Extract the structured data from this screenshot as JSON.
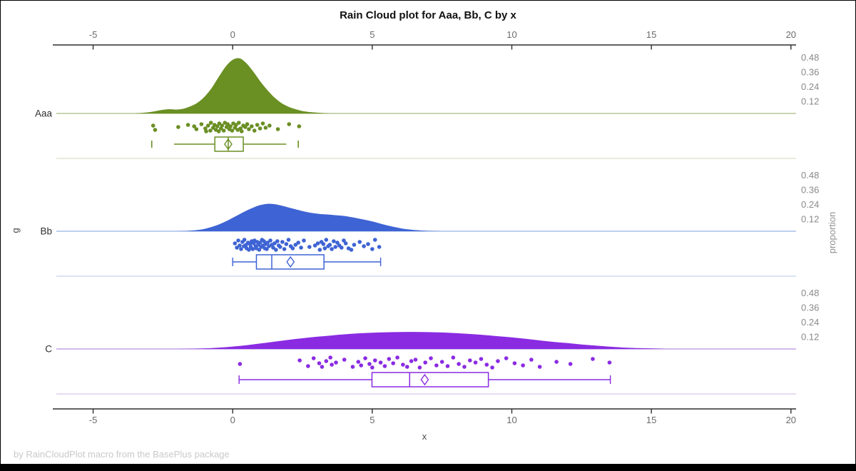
{
  "title": "Rain Cloud plot for Aaa, Bb, C by x",
  "footnote": "by RainCloudPlot macro from the BasePlus package",
  "chart_data": {
    "type": "raincloud (half-violin density + jittered strip points + horizontal box plots)",
    "title": "Rain Cloud plot for Aaa, Bb, C by x",
    "xlabel": "x",
    "ylabel": "g",
    "right_axis_label": "proportion",
    "x_ticks": [
      -5,
      0,
      5,
      10,
      15,
      20
    ],
    "x_range": [
      -6.4,
      20.3
    ],
    "grid": "off",
    "proportion_ticks": [
      0.48,
      0.36,
      0.24,
      0.12
    ],
    "axis_color": "#2e2e2e",
    "tick_label_color": "#6b6b6b",
    "category_label_color": "#2f2f2f",
    "groups": [
      {
        "name": "Aaa",
        "color": "#6a8f23",
        "baseline_color": "#b9c795",
        "band_line_color": "#dcddc6",
        "density": {
          "x": [
            -3.5,
            -3.25,
            -3,
            -2.75,
            -2.5,
            -2.25,
            -2,
            -1.75,
            -1.5,
            -1.25,
            -1,
            -0.75,
            -0.5,
            -0.25,
            0,
            0.25,
            0.5,
            0.75,
            1,
            1.25,
            1.5,
            1.75,
            2,
            2.25,
            2.5,
            2.75,
            3,
            3.25,
            3.5
          ],
          "h": [
            0,
            0.004,
            0.01,
            0.02,
            0.03,
            0.035,
            0.032,
            0.04,
            0.06,
            0.09,
            0.14,
            0.21,
            0.3,
            0.385,
            0.44,
            0.452,
            0.41,
            0.34,
            0.26,
            0.19,
            0.13,
            0.085,
            0.055,
            0.035,
            0.02,
            0.012,
            0.007,
            0.003,
            0
          ]
        },
        "points": [
          [
            -2.85,
            -2
          ],
          [
            -2.78,
            4
          ],
          [
            -1.95,
            0
          ],
          [
            -1.6,
            -3
          ],
          [
            -1.38,
            -1
          ],
          [
            -1.3,
            3
          ],
          [
            -1.12,
            -4
          ],
          [
            -0.98,
            2
          ],
          [
            -0.95,
            6
          ],
          [
            -0.88,
            -2
          ],
          [
            -0.8,
            5
          ],
          [
            -0.78,
            -6
          ],
          [
            -0.7,
            1
          ],
          [
            -0.65,
            -3
          ],
          [
            -0.6,
            4
          ],
          [
            -0.55,
            -1
          ],
          [
            -0.5,
            6
          ],
          [
            -0.48,
            -5
          ],
          [
            -0.42,
            2
          ],
          [
            -0.38,
            -2
          ],
          [
            -0.32,
            5
          ],
          [
            -0.28,
            -6
          ],
          [
            -0.22,
            0
          ],
          [
            -0.18,
            -4
          ],
          [
            -0.12,
            3
          ],
          [
            -0.08,
            -1
          ],
          [
            -0.02,
            5
          ],
          [
            0.02,
            -5
          ],
          [
            0.08,
            1
          ],
          [
            0.12,
            -3
          ],
          [
            0.18,
            4
          ],
          [
            0.22,
            -6
          ],
          [
            0.28,
            2
          ],
          [
            0.32,
            6
          ],
          [
            0.38,
            -2
          ],
          [
            0.45,
            0
          ],
          [
            0.52,
            -4
          ],
          [
            0.58,
            3
          ],
          [
            0.68,
            -1
          ],
          [
            0.78,
            5
          ],
          [
            0.88,
            -3
          ],
          [
            0.98,
            2
          ],
          [
            1.08,
            -5
          ],
          [
            1.18,
            1
          ],
          [
            1.32,
            -2
          ],
          [
            1.62,
            3
          ],
          [
            2.02,
            -4
          ],
          [
            2.38,
            -1
          ]
        ],
        "box": {
          "whisker_low": -2.1,
          "q1": -0.64,
          "median": -0.16,
          "q3": 0.38,
          "whisker_high": 1.92,
          "mean": -0.16,
          "outliers": [
            -2.9,
            2.35
          ],
          "capped": false
        }
      },
      {
        "name": "Bb",
        "color": "#3e63d4",
        "baseline_color": "#a9c0ea",
        "band_line_color": "#c3d0ee",
        "density": {
          "x": [
            -2,
            -1.75,
            -1.5,
            -1.25,
            -1,
            -0.75,
            -0.5,
            -0.25,
            0,
            0.25,
            0.5,
            0.75,
            1,
            1.25,
            1.5,
            1.75,
            2,
            2.25,
            2.5,
            2.75,
            3,
            3.25,
            3.5,
            3.75,
            4,
            4.25,
            4.5,
            4.75,
            5,
            5.25,
            5.5,
            5.75,
            6,
            6.25,
            6.5,
            6.75,
            7,
            7.25,
            7.5
          ],
          "h": [
            0,
            0.002,
            0.005,
            0.01,
            0.02,
            0.035,
            0.055,
            0.08,
            0.11,
            0.14,
            0.17,
            0.195,
            0.215,
            0.225,
            0.222,
            0.21,
            0.195,
            0.18,
            0.165,
            0.153,
            0.145,
            0.139,
            0.135,
            0.13,
            0.125,
            0.116,
            0.105,
            0.093,
            0.08,
            0.065,
            0.05,
            0.037,
            0.025,
            0.016,
            0.01,
            0.006,
            0.003,
            0.001,
            0
          ]
        },
        "points": [
          [
            0.08,
            -2
          ],
          [
            0.15,
            4
          ],
          [
            0.2,
            -6
          ],
          [
            0.25,
            1
          ],
          [
            0.3,
            6
          ],
          [
            0.35,
            -4
          ],
          [
            0.4,
            2
          ],
          [
            0.42,
            -7
          ],
          [
            0.48,
            0
          ],
          [
            0.5,
            5
          ],
          [
            0.55,
            -3
          ],
          [
            0.58,
            7
          ],
          [
            0.62,
            -1
          ],
          [
            0.65,
            3
          ],
          [
            0.68,
            -5
          ],
          [
            0.72,
            6
          ],
          [
            0.75,
            -2
          ],
          [
            0.78,
            -6
          ],
          [
            0.82,
            2
          ],
          [
            0.85,
            5
          ],
          [
            0.88,
            -4
          ],
          [
            0.92,
            0
          ],
          [
            0.95,
            7
          ],
          [
            0.98,
            -3
          ],
          [
            1.02,
            3
          ],
          [
            1.05,
            -7
          ],
          [
            1.08,
            1
          ],
          [
            1.12,
            -5
          ],
          [
            1.15,
            5
          ],
          [
            1.18,
            -1
          ],
          [
            1.22,
            6
          ],
          [
            1.25,
            -3
          ],
          [
            1.3,
            2
          ],
          [
            1.35,
            -6
          ],
          [
            1.4,
            0
          ],
          [
            1.45,
            4
          ],
          [
            1.5,
            -2
          ],
          [
            1.55,
            7
          ],
          [
            1.6,
            -5
          ],
          [
            1.65,
            1
          ],
          [
            1.7,
            3
          ],
          [
            1.78,
            -4
          ],
          [
            1.85,
            6
          ],
          [
            1.92,
            -1
          ],
          [
            2.0,
            -7
          ],
          [
            2.08,
            2
          ],
          [
            2.15,
            5
          ],
          [
            2.25,
            0
          ],
          [
            2.35,
            -3
          ],
          [
            2.45,
            4
          ],
          [
            2.55,
            -6
          ],
          [
            2.75,
            3
          ],
          [
            2.95,
            1
          ],
          [
            3.05,
            -2
          ],
          [
            3.12,
            7
          ],
          [
            3.18,
            -4
          ],
          [
            3.25,
            -1
          ],
          [
            3.3,
            5
          ],
          [
            3.35,
            -7
          ],
          [
            3.42,
            2
          ],
          [
            3.48,
            0
          ],
          [
            3.55,
            6
          ],
          [
            3.62,
            -5
          ],
          [
            3.68,
            3
          ],
          [
            3.75,
            -3
          ],
          [
            3.82,
            1
          ],
          [
            3.9,
            4
          ],
          [
            3.98,
            -6
          ],
          [
            4.05,
            -2
          ],
          [
            4.15,
            5
          ],
          [
            4.25,
            7
          ],
          [
            4.35,
            0
          ],
          [
            4.55,
            -4
          ],
          [
            4.7,
            2
          ],
          [
            4.85,
            -1
          ],
          [
            5.0,
            6
          ],
          [
            5.1,
            -7
          ],
          [
            5.25,
            3
          ]
        ],
        "box": {
          "whisker_low": 0.0,
          "q1": 0.85,
          "median": 1.4,
          "q3": 3.27,
          "whisker_high": 5.3,
          "mean": 2.07,
          "outliers": [],
          "capped": true
        }
      },
      {
        "name": "C",
        "color": "#8a2be2",
        "baseline_color": "#c3a1e6",
        "band_line_color": "#d9c6ee",
        "density": {
          "x": [
            -2,
            -1.5,
            -1,
            -0.5,
            0,
            0.5,
            1,
            1.5,
            2,
            2.5,
            3,
            3.5,
            4,
            4.5,
            5,
            5.5,
            6,
            6.5,
            7,
            7.5,
            8,
            8.5,
            9,
            9.5,
            10,
            10.5,
            11,
            11.5,
            12,
            12.5,
            13,
            13.5,
            14,
            14.5,
            15,
            15.5
          ],
          "h": [
            0,
            0.002,
            0.005,
            0.011,
            0.02,
            0.031,
            0.045,
            0.06,
            0.075,
            0.088,
            0.1,
            0.11,
            0.12,
            0.128,
            0.133,
            0.137,
            0.139,
            0.14,
            0.138,
            0.135,
            0.13,
            0.123,
            0.115,
            0.105,
            0.095,
            0.083,
            0.07,
            0.058,
            0.048,
            0.037,
            0.028,
            0.019,
            0.012,
            0.007,
            0.004,
            0
          ]
        },
        "points": [
          [
            0.26,
            2
          ],
          [
            2.4,
            -3
          ],
          [
            2.7,
            5
          ],
          [
            2.9,
            -6
          ],
          [
            3.1,
            1
          ],
          [
            3.2,
            6
          ],
          [
            3.35,
            -2
          ],
          [
            3.5,
            -7
          ],
          [
            3.55,
            3
          ],
          [
            3.7,
            0
          ],
          [
            4.0,
            -4
          ],
          [
            4.3,
            6
          ],
          [
            4.5,
            -1
          ],
          [
            4.6,
            4
          ],
          [
            4.75,
            -6
          ],
          [
            4.9,
            2
          ],
          [
            5.0,
            7
          ],
          [
            5.1,
            -3
          ],
          [
            5.3,
            0
          ],
          [
            5.45,
            5
          ],
          [
            5.6,
            -5
          ],
          [
            5.75,
            1
          ],
          [
            5.9,
            -7
          ],
          [
            6.1,
            3
          ],
          [
            6.25,
            6
          ],
          [
            6.4,
            -2
          ],
          [
            6.55,
            -4
          ],
          [
            6.7,
            7
          ],
          [
            6.9,
            0
          ],
          [
            7.1,
            -6
          ],
          [
            7.3,
            4
          ],
          [
            7.5,
            -1
          ],
          [
            7.7,
            5
          ],
          [
            7.9,
            -7
          ],
          [
            8.1,
            2
          ],
          [
            8.3,
            6
          ],
          [
            8.5,
            -3
          ],
          [
            8.7,
            0
          ],
          [
            8.9,
            -5
          ],
          [
            9.1,
            3
          ],
          [
            9.3,
            7
          ],
          [
            9.5,
            -2
          ],
          [
            9.8,
            -6
          ],
          [
            10.1,
            1
          ],
          [
            10.4,
            4
          ],
          [
            10.7,
            -4
          ],
          [
            11.0,
            6
          ],
          [
            11.6,
            -1
          ],
          [
            12.1,
            2
          ],
          [
            12.9,
            -5
          ],
          [
            13.5,
            0
          ]
        ],
        "box": {
          "whisker_low": 0.23,
          "q1": 4.99,
          "median": 6.34,
          "q3": 9.16,
          "whisker_high": 13.53,
          "mean": 6.88,
          "outliers": [],
          "capped": true
        }
      }
    ]
  }
}
